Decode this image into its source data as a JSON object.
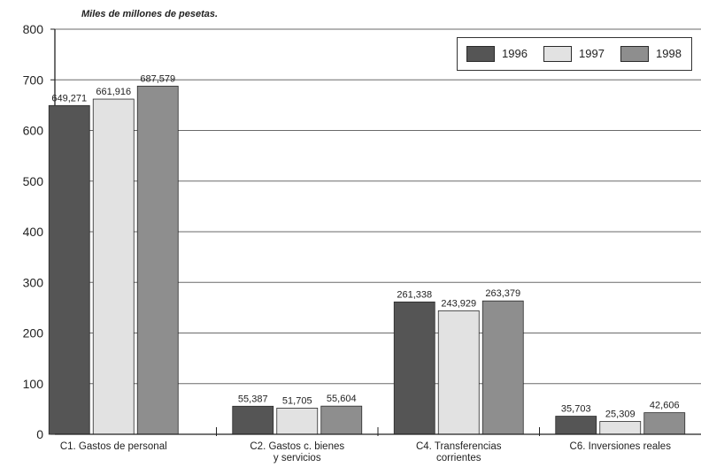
{
  "chart_data": {
    "type": "bar",
    "title": "",
    "unit_label": "Miles de millones de pesetas.",
    "xlabel": "",
    "ylabel": "",
    "ylim": [
      0,
      800
    ],
    "yticks": [
      0,
      100,
      200,
      300,
      400,
      500,
      600,
      700,
      800
    ],
    "grid": true,
    "legend_position": "top-right",
    "categories": [
      "C1. Gastos de personal",
      "C2. Gastos c. bienes y servicios",
      "C4. Transferencias corrientes",
      "C6. Inversiones reales"
    ],
    "category_lines": [
      [
        "C1. Gastos de personal"
      ],
      [
        "C2. Gastos c. bienes",
        "y servicios"
      ],
      [
        "C4. Transferencias",
        "corrientes"
      ],
      [
        "C6. Inversiones reales"
      ]
    ],
    "series": [
      {
        "name": "1996",
        "color": "#555555",
        "values": [
          649.271,
          55.387,
          261.338,
          35.703
        ],
        "labels": [
          "649,271",
          "55,387",
          "261,338",
          "35,703"
        ]
      },
      {
        "name": "1997",
        "color": "#e2e2e2",
        "values": [
          661.916,
          51.705,
          243.929,
          25.309
        ],
        "labels": [
          "661,916",
          "51,705",
          "243,929",
          "25,309"
        ]
      },
      {
        "name": "1998",
        "color": "#8e8e8e",
        "values": [
          687.579,
          55.604,
          263.379,
          42.606
        ],
        "labels": [
          "687,579",
          "55,604",
          "263,379",
          "42,606"
        ]
      }
    ]
  }
}
